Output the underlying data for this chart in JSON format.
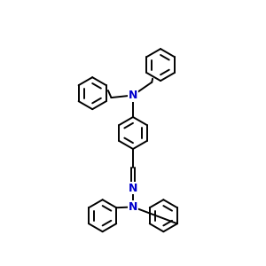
{
  "bg_color": "#ffffff",
  "bond_color": "#000000",
  "N_color": "#0000cc",
  "bond_width": 1.4,
  "figsize": [
    3.0,
    3.0
  ],
  "dpi": 100,
  "xlim": [
    -2.5,
    2.5
  ],
  "ylim": [
    -4.5,
    4.5
  ]
}
